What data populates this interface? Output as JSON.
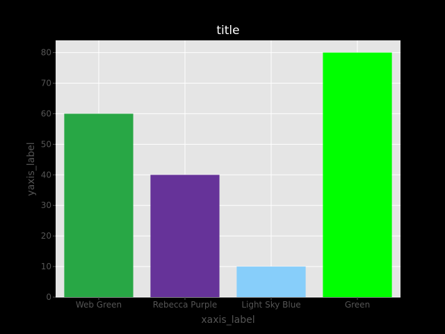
{
  "chart_data": {
    "type": "bar",
    "title": "title",
    "xlabel": "xaxis_label",
    "ylabel": "yaxis_label",
    "categories": [
      "Web Green",
      "Rebecca Purple",
      "Light Sky Blue",
      "Green"
    ],
    "values": [
      60,
      40,
      10,
      80
    ],
    "colors": [
      "#28A745",
      "#663399",
      "#87CEFA",
      "#00FF00"
    ],
    "ylim": [
      0,
      84
    ],
    "yticks": [
      0,
      10,
      20,
      30,
      40,
      50,
      60,
      70,
      80
    ],
    "grid": true,
    "legend": "none"
  },
  "style": {
    "figure_background": "#000000",
    "plot_background": "#E5E5E5",
    "grid_color": "#FFFFFF",
    "tick_label_color": "#555555",
    "axis_label_color": "#555555",
    "title_color": "#FFFFFF"
  }
}
